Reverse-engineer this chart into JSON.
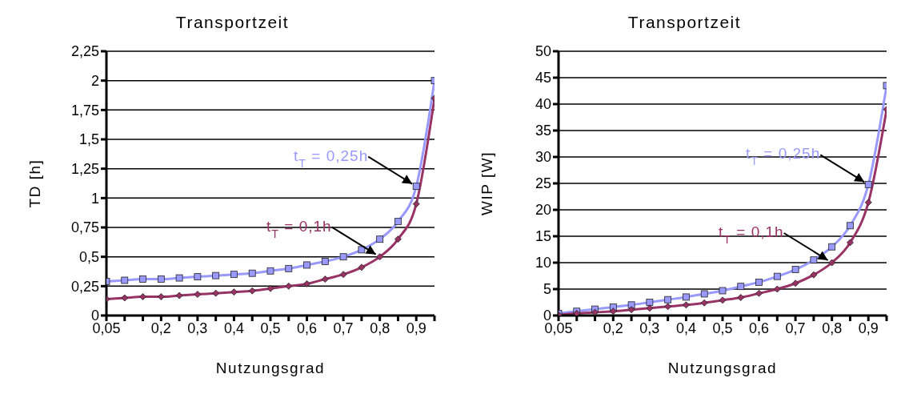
{
  "chart_data": [
    {
      "type": "line",
      "title": "Transportzeit",
      "xlabel": "Nutzungsgrad",
      "ylabel": "TD [h]",
      "categories": [
        "0,05",
        null,
        null,
        "0,2",
        null,
        "0,3",
        null,
        "0,4",
        null,
        "0,5",
        null,
        "0,6",
        null,
        "0,7",
        null,
        "0,8",
        null,
        "0,9",
        null
      ],
      "series": [
        {
          "color": "#9999ff",
          "marker": "square",
          "values": [
            0.29,
            0.3,
            0.31,
            0.31,
            0.32,
            0.33,
            0.34,
            0.35,
            0.36,
            0.38,
            0.4,
            0.43,
            0.46,
            0.5,
            0.56,
            0.65,
            0.8,
            1.1,
            2.0
          ]
        },
        {
          "color": "#993366",
          "marker": "diamond",
          "values": [
            0.14,
            0.15,
            0.16,
            0.16,
            0.17,
            0.18,
            0.19,
            0.2,
            0.21,
            0.23,
            0.25,
            0.27,
            0.31,
            0.35,
            0.41,
            0.5,
            0.65,
            0.95,
            1.85
          ]
        }
      ],
      "ylim": [
        0,
        2.25
      ],
      "yticks": [
        0,
        {
          "value": 0.25,
          "label": "0,25"
        },
        {
          "value": 0.5,
          "label": "0,5"
        },
        {
          "value": 0.75,
          "label": "0,75"
        },
        1,
        {
          "value": 1.25,
          "label": "1,25"
        },
        {
          "value": 1.5,
          "label": "1,5"
        },
        {
          "value": 1.75,
          "label": "1,75"
        },
        2,
        {
          "value": 2.25,
          "label": "2,25"
        }
      ],
      "grid": "y",
      "annotations": [
        {
          "text": "t$_{T}$ = 0,25h",
          "x": "0,9",
          "y": 1.1
        },
        {
          "text": "t$_{T}$ = 0,1h",
          "x": "0,8",
          "y": 0.5
        }
      ]
    },
    {
      "type": "line",
      "title": "Transportzeit",
      "xlabel": "Nutzungsgrad",
      "ylabel": "WIP [W]",
      "categories": [
        "0,05",
        null,
        null,
        "0,2",
        null,
        "0,3",
        null,
        "0,4",
        null,
        "0,5",
        null,
        "0,6",
        null,
        "0,7",
        null,
        "0,8",
        null,
        "0,9",
        null
      ],
      "series": [
        {
          "color": "#9999ff",
          "marker": "square",
          "values": [
            0.4,
            0.8,
            1.2,
            1.6,
            2.0,
            2.5,
            3.0,
            3.5,
            4.1,
            4.7,
            5.5,
            6.3,
            7.4,
            8.7,
            10.5,
            13.0,
            17.0,
            24.8,
            43.5
          ]
        },
        {
          "color": "#993366",
          "marker": "diamond",
          "values": [
            0.1,
            0.4,
            0.6,
            0.8,
            1.1,
            1.4,
            1.7,
            2.0,
            2.4,
            2.9,
            3.4,
            4.2,
            5.0,
            6.1,
            7.7,
            10.0,
            13.8,
            21.4,
            39.0
          ]
        }
      ],
      "ylim": [
        0,
        50
      ],
      "yticks": [
        0,
        5,
        10,
        15,
        20,
        25,
        30,
        35,
        40,
        45,
        50
      ],
      "grid": "y",
      "annotations": [
        {
          "text": "t$_{T}$ = 0,25h",
          "x": "0,9",
          "y": 24.8
        },
        {
          "text": "t$_{T}$ = 0,1h",
          "x": "0,8",
          "y": 10.0
        }
      ]
    }
  ]
}
